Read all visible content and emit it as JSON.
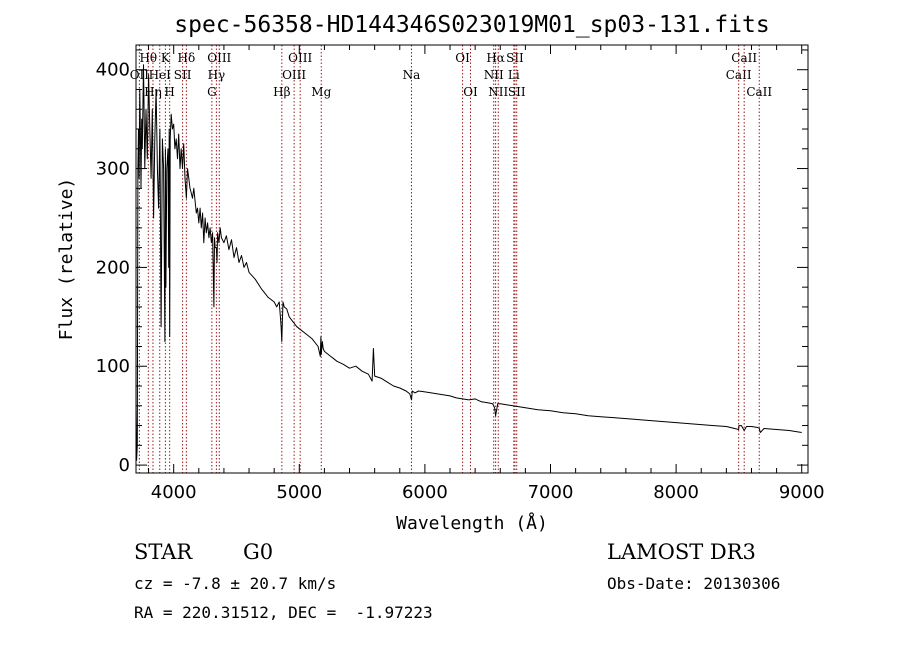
{
  "chart_data": {
    "type": "line",
    "title": "spec-56358-HD144346S023019M01_sp03-131.fits",
    "xlabel": "Wavelength (Å)",
    "ylabel": "Flux (relative)",
    "xlim": [
      3700,
      9050
    ],
    "ylim": [
      -8,
      425
    ],
    "xticks": [
      4000,
      5000,
      6000,
      7000,
      8000,
      9000
    ],
    "yticks": [
      0,
      100,
      200,
      300,
      400
    ],
    "x_minor_step": 200,
    "y_minor_step": 20,
    "series": [
      {
        "name": "flux",
        "x": [
          3700,
          3705,
          3710,
          3715,
          3720,
          3725,
          3730,
          3735,
          3740,
          3745,
          3750,
          3760,
          3770,
          3780,
          3790,
          3800,
          3810,
          3820,
          3830,
          3840,
          3850,
          3860,
          3870,
          3880,
          3890,
          3900,
          3910,
          3920,
          3930,
          3934,
          3938,
          3945,
          3955,
          3960,
          3964,
          3968,
          3972,
          3980,
          3990,
          4000,
          4010,
          4020,
          4030,
          4040,
          4050,
          4060,
          4070,
          4080,
          4090,
          4101,
          4110,
          4120,
          4130,
          4140,
          4150,
          4160,
          4170,
          4180,
          4190,
          4200,
          4210,
          4220,
          4230,
          4240,
          4250,
          4260,
          4270,
          4280,
          4290,
          4300,
          4310,
          4320,
          4325,
          4330,
          4340,
          4345,
          4350,
          4360,
          4370,
          4380,
          4400,
          4420,
          4440,
          4460,
          4480,
          4500,
          4520,
          4540,
          4560,
          4580,
          4600,
          4650,
          4700,
          4750,
          4800,
          4820,
          4840,
          4850,
          4855,
          4861,
          4866,
          4870,
          4880,
          4900,
          4920,
          4950,
          4980,
          5000,
          5050,
          5100,
          5150,
          5167,
          5172,
          5175,
          5180,
          5183,
          5190,
          5200,
          5250,
          5270,
          5300,
          5350,
          5400,
          5450,
          5500,
          5550,
          5580,
          5590,
          5600,
          5650,
          5700,
          5750,
          5800,
          5850,
          5880,
          5893,
          5900,
          5920,
          5950,
          6000,
          6050,
          6100,
          6150,
          6200,
          6250,
          6300,
          6350,
          6400,
          6450,
          6500,
          6540,
          6555,
          6563,
          6570,
          6580,
          6600,
          6650,
          6700,
          6800,
          6900,
          7000,
          7100,
          7200,
          7300,
          7400,
          7500,
          7600,
          7700,
          7800,
          7900,
          8000,
          8100,
          8200,
          8300,
          8400,
          8498,
          8500,
          8520,
          8542,
          8560,
          8600,
          8650,
          8662,
          8670,
          8700,
          8800,
          8900,
          9000
        ],
        "y": [
          60,
          5,
          20,
          300,
          340,
          290,
          380,
          335,
          280,
          350,
          320,
          405,
          300,
          360,
          310,
          395,
          340,
          290,
          360,
          250,
          330,
          380,
          300,
          260,
          340,
          140,
          330,
          300,
          125,
          320,
          180,
          300,
          320,
          200,
          340,
          130,
          330,
          355,
          340,
          345,
          320,
          330,
          310,
          335,
          300,
          320,
          300,
          325,
          290,
          270,
          300,
          290,
          280,
          275,
          270,
          280,
          268,
          255,
          260,
          245,
          260,
          240,
          255,
          225,
          250,
          235,
          245,
          230,
          240,
          225,
          235,
          160,
          230,
          220,
          220,
          205,
          235,
          225,
          240,
          230,
          225,
          232,
          218,
          228,
          210,
          220,
          205,
          212,
          200,
          205,
          195,
          188,
          178,
          170,
          165,
          160,
          165,
          150,
          140,
          125,
          150,
          165,
          160,
          158,
          150,
          145,
          140,
          138,
          133,
          128,
          120,
          110,
          130,
          112,
          120,
          125,
          118,
          115,
          110,
          108,
          105,
          102,
          98,
          100,
          95,
          92,
          85,
          118,
          90,
          88,
          84,
          80,
          78,
          75,
          72,
          66,
          75,
          73,
          75,
          74,
          73,
          72,
          71,
          70,
          68,
          67,
          66,
          67,
          64,
          63,
          62,
          58,
          50,
          55,
          62,
          62,
          61,
          60,
          58,
          56,
          55,
          53,
          52,
          50,
          49,
          48,
          47,
          46,
          45,
          44,
          43,
          42,
          41,
          40,
          39,
          36,
          40,
          40,
          35,
          39,
          39,
          38,
          37,
          33,
          37,
          36,
          35,
          33
        ]
      }
    ],
    "emission_lines": [
      {
        "name": "OII",
        "wave": 3727,
        "row": 1
      },
      {
        "name": "Hθ",
        "wave": 3798,
        "row": 0
      },
      {
        "name": "Hη",
        "wave": 3835,
        "row": 2
      },
      {
        "name": "HeI",
        "wave": 3889,
        "row": 1
      },
      {
        "name": "K",
        "wave": 3934,
        "row": 0
      },
      {
        "name": "H",
        "wave": 3968,
        "row": 2
      },
      {
        "name": "SII",
        "wave": 4071,
        "row": 1
      },
      {
        "name": "Hδ",
        "wave": 4101,
        "row": 0
      },
      {
        "name": "G",
        "wave": 4304,
        "row": 2
      },
      {
        "name": "Hγ",
        "wave": 4340,
        "row": 1
      },
      {
        "name": "OIII",
        "wave": 4363,
        "row": 0
      },
      {
        "name": "Hβ",
        "wave": 4861,
        "row": 2
      },
      {
        "name": "OIII",
        "wave": 4959,
        "row": 1
      },
      {
        "name": "OIII",
        "wave": 5007,
        "row": 0
      },
      {
        "name": "Mg",
        "wave": 5175,
        "row": 2
      },
      {
        "name": "Na",
        "wave": 5893,
        "row": 1
      },
      {
        "name": "OI",
        "wave": 6300,
        "row": 0
      },
      {
        "name": "OI",
        "wave": 6363,
        "row": 2
      },
      {
        "name": "NII",
        "wave": 6548,
        "row": 1
      },
      {
        "name": "Hα",
        "wave": 6563,
        "row": 0
      },
      {
        "name": "NII",
        "wave": 6584,
        "row": 2
      },
      {
        "name": "Li",
        "wave": 6708,
        "row": 1
      },
      {
        "name": "SII",
        "wave": 6717,
        "row": 0
      },
      {
        "name": "SII",
        "wave": 6731,
        "row": 2
      },
      {
        "name": "CaII",
        "wave": 8498,
        "row": 1
      },
      {
        "name": "CaII",
        "wave": 8542,
        "row": 0
      },
      {
        "name": "CaII",
        "wave": 8662,
        "row": 2
      }
    ],
    "line_color": "#9b1c1c"
  },
  "info": {
    "object_class": "STAR",
    "subclass": "G0",
    "survey": "LAMOST DR3",
    "redshift": "cz = -7.8 ± 20.7 km/s",
    "obs_date": "Obs-Date: 20130306",
    "coords": "RA = 220.31512, DEC =  -1.97223"
  }
}
